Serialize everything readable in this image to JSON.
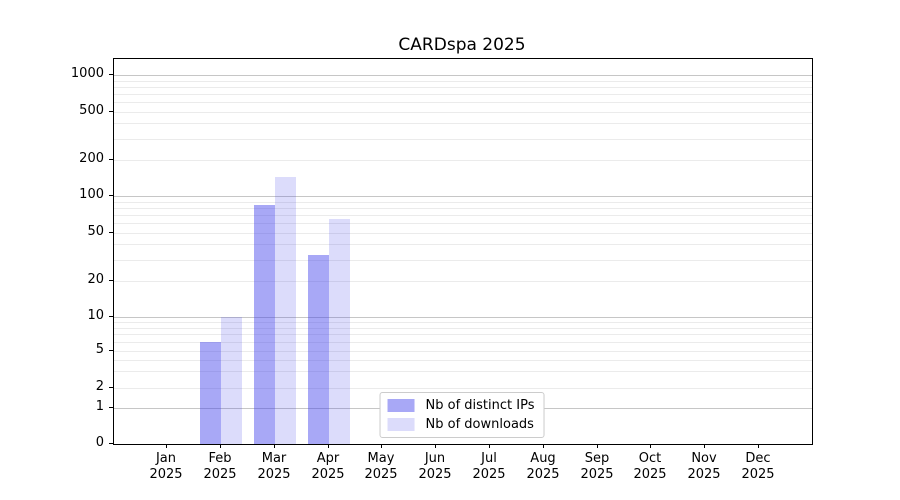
{
  "chart_data": {
    "type": "bar",
    "title": "CARDspa 2025",
    "categories": [
      "Jan",
      "Feb",
      "Mar",
      "Apr",
      "May",
      "Jun",
      "Jul",
      "Aug",
      "Sep",
      "Oct",
      "Nov",
      "Dec"
    ],
    "category_year": "2025",
    "series": [
      {
        "name": "Nb of distinct IPs",
        "color": "rgba(62,62,235,0.45)",
        "values": [
          0,
          6,
          85,
          33,
          0,
          0,
          0,
          0,
          0,
          0,
          0,
          0
        ]
      },
      {
        "name": "Nb of downloads",
        "color": "rgba(62,62,235,0.18)",
        "values": [
          0,
          10,
          145,
          65,
          0,
          0,
          0,
          0,
          0,
          0,
          0,
          0
        ]
      }
    ],
    "y_ticks": [
      0,
      1,
      2,
      5,
      10,
      20,
      50,
      100,
      200,
      500,
      1000
    ],
    "y_axis": {
      "scale": "symlog",
      "min": 0,
      "max": 1365,
      "anchors": [
        [
          0,
          0
        ],
        [
          1,
          0.0925
        ],
        [
          2,
          0.1459
        ],
        [
          5,
          0.2427
        ],
        [
          10,
          0.329
        ]
      ],
      "decade_fraction": 0.3143
    },
    "grid": {
      "major_color": "#c6c6c6",
      "minor_color": "#ebebeb"
    },
    "legend": {
      "location": "lower center"
    }
  }
}
